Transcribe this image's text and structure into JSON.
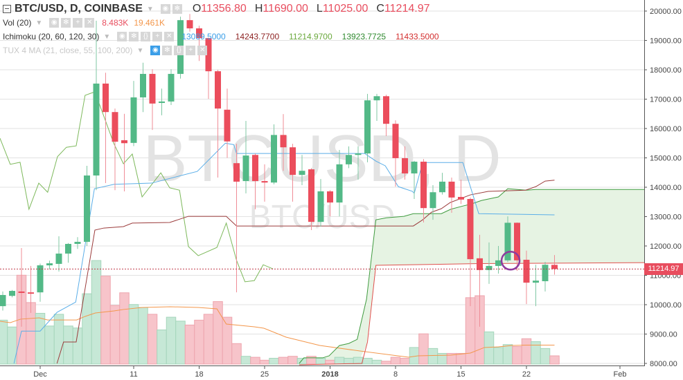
{
  "header": {
    "symbol": "BTC/USD, D, COINBASE",
    "ohlc": {
      "o_label": "O",
      "o": "11356.80",
      "h_label": "H",
      "h": "11690.00",
      "l_label": "L",
      "l": "11025.00",
      "c_label": "C",
      "c": "11214.97"
    }
  },
  "indicators": {
    "vol": {
      "name": "Vol (20)",
      "value": "8.483K",
      "ma": "19.461K"
    },
    "ichimoku": {
      "name": "Ichimoku (20, 60, 120, 30)",
      "conversion": "13089.5000",
      "base": "14243.7700",
      "lagging": "11214.9700",
      "lead_a": "13923.7725",
      "lead_b": "11433.5000"
    },
    "tux": {
      "name": "TUX 4 MA (21, close, 55, 100, 200)"
    }
  },
  "watermark": {
    "big": "BTCUSD, D",
    "small": "BTC/USD"
  },
  "last_price_label": "11214.97",
  "colors": {
    "up": "#53b987",
    "down": "#eb4d5c",
    "vol_up": "#c6e8d6",
    "vol_down": "#f7c4ca",
    "conversion": "#5aaee8",
    "base": "#9b3b3b",
    "lagging": "#7cb85a",
    "lead_a": "#3f9b3f",
    "lead_b": "#e0504d",
    "cloud": "#e6f3e3",
    "vol_ma": "#f3964a",
    "marker": "#8e3b9e"
  },
  "chart_data": {
    "type": "candlestick",
    "title": "BTC/USD, D, COINBASE",
    "ylim": [
      8000,
      20000
    ],
    "y_ticks": [
      "20000.00",
      "19000.00",
      "18000.00",
      "17000.00",
      "16000.00",
      "15000.00",
      "14000.00",
      "13000.00",
      "12000.00",
      "11000.00",
      "10000.00",
      "9000.00",
      "8000.00"
    ],
    "y_tick_values": [
      20000,
      19000,
      18000,
      17000,
      16000,
      15000,
      14000,
      13000,
      12000,
      11000,
      10000,
      9000,
      8000
    ],
    "x_ticks": [
      {
        "label": "Dec",
        "i": 4
      },
      {
        "label": "11",
        "i": 14
      },
      {
        "label": "18",
        "i": 21
      },
      {
        "label": "25",
        "i": 28
      },
      {
        "label": "2018",
        "i": 35,
        "bold": true
      },
      {
        "label": "8",
        "i": 42
      },
      {
        "label": "15",
        "i": 49
      },
      {
        "label": "22",
        "i": 56
      },
      {
        "label": "Feb",
        "i": 66
      }
    ],
    "candles": [
      [
        "Nov 27",
        9950,
        10450,
        9800,
        10330,
        45
      ],
      [
        "Nov 28",
        10300,
        10500,
        10250,
        10470,
        38
      ],
      [
        "Nov 29",
        10450,
        11930,
        9250,
        10400,
        91
      ],
      [
        "Nov 30",
        10420,
        11320,
        9720,
        10380,
        63
      ],
      [
        "Dec 1",
        10420,
        11400,
        10100,
        11340,
        52
      ],
      [
        "Dec 2",
        11340,
        11500,
        11200,
        11410,
        39
      ],
      [
        "Dec 3",
        11390,
        12330,
        11130,
        11740,
        51
      ],
      [
        "Dec 4",
        11740,
        12100,
        11430,
        12070,
        39
      ],
      [
        "Dec 5",
        12070,
        12300,
        11900,
        12140,
        37
      ],
      [
        "Dec 6",
        12140,
        14730,
        12000,
        14400,
        72
      ],
      [
        "Dec 7",
        14400,
        19670,
        13900,
        17530,
        106
      ],
      [
        "Dec 8",
        17530,
        17900,
        14140,
        16560,
        90
      ],
      [
        "Dec 9",
        16560,
        16680,
        13900,
        15550,
        60
      ],
      [
        "Dec 10",
        15600,
        16500,
        13860,
        15500,
        73
      ],
      [
        "Dec 11",
        15510,
        17620,
        15400,
        17060,
        61
      ],
      [
        "Dec 12",
        17060,
        18240,
        16560,
        17860,
        58
      ],
      [
        "Dec 13",
        17860,
        18020,
        15950,
        16850,
        51
      ],
      [
        "Dec 14",
        16870,
        17360,
        16450,
        16920,
        35
      ],
      [
        "Dec 15",
        16920,
        18020,
        16800,
        17860,
        48
      ],
      [
        "Dec 16",
        17860,
        19810,
        17700,
        19690,
        44
      ],
      [
        "Dec 17",
        19690,
        19900,
        19300,
        19410,
        40
      ],
      [
        "Dec 18",
        19410,
        19500,
        18300,
        19080,
        45
      ],
      [
        "Dec 19",
        19080,
        19100,
        17010,
        17950,
        51
      ],
      [
        "Dec 20",
        17950,
        18000,
        14330,
        16680,
        64
      ],
      [
        "Dec 21",
        16640,
        17360,
        15000,
        15560,
        48
      ],
      [
        "Dec 22",
        14820,
        15480,
        10420,
        14190,
        21
      ],
      [
        "Dec 23",
        14210,
        16260,
        13790,
        15080,
        8
      ],
      [
        "Dec 24",
        15100,
        15150,
        13250,
        14210,
        7
      ],
      [
        "Dec 25",
        14210,
        14780,
        13510,
        14160,
        4
      ],
      [
        "Dec 26",
        14160,
        16140,
        14100,
        15780,
        6
      ],
      [
        "Dec 27",
        15780,
        16490,
        14560,
        15360,
        7
      ],
      [
        "Dec 28",
        15360,
        15480,
        13510,
        14420,
        8
      ],
      [
        "Dec 29",
        14420,
        15100,
        14070,
        14560,
        6
      ],
      [
        "Dec 30",
        14610,
        14650,
        12540,
        12820,
        8
      ],
      [
        "Dec 31",
        12820,
        14280,
        12660,
        13860,
        6
      ],
      [
        "Jan 1",
        13860,
        13900,
        13010,
        13480,
        4
      ],
      [
        "Jan 2",
        13480,
        15270,
        13010,
        14780,
        7
      ],
      [
        "Jan 3",
        14780,
        15390,
        14650,
        15100,
        6
      ],
      [
        "Jan 4",
        15100,
        15390,
        14260,
        15150,
        7
      ],
      [
        "Jan 5",
        15150,
        17180,
        14850,
        16960,
        6
      ],
      [
        "Jan 6",
        16960,
        17180,
        16260,
        17100,
        4
      ],
      [
        "Jan 7",
        17100,
        17150,
        15740,
        16160,
        3
      ],
      [
        "Jan 8",
        16160,
        16280,
        14020,
        14990,
        7
      ],
      [
        "Jan 9",
        14990,
        15390,
        14260,
        14470,
        6
      ],
      [
        "Jan 10",
        14470,
        14900,
        13600,
        14870,
        17
      ],
      [
        "Jan 11",
        14870,
        14960,
        12800,
        13290,
        31
      ],
      [
        "Jan 12",
        13290,
        14070,
        12890,
        13830,
        16
      ],
      [
        "Jan 13",
        13830,
        14490,
        13750,
        14190,
        11
      ],
      [
        "Jan 14",
        14190,
        14330,
        13130,
        13650,
        11
      ],
      [
        "Jan 15",
        13670,
        14260,
        13430,
        13580,
        11
      ],
      [
        "Jan 16",
        13600,
        13650,
        9950,
        11550,
        68
      ],
      [
        "Jan 17",
        11580,
        12380,
        9250,
        11180,
        70
      ],
      [
        "Jan 18",
        11180,
        12120,
        10710,
        11320,
        33
      ],
      [
        "Jan 19",
        11320,
        12000,
        11060,
        11510,
        17
      ],
      [
        "Jan 20",
        11510,
        13010,
        11450,
        12790,
        20
      ],
      [
        "Jan 21",
        12790,
        12800,
        11150,
        11510,
        18
      ],
      [
        "Jan 22",
        11530,
        11840,
        10020,
        10750,
        26
      ],
      [
        "Jan 23",
        10750,
        11360,
        9950,
        10820,
        23
      ],
      [
        "Jan 24",
        10800,
        11460,
        10450,
        11360,
        16
      ],
      [
        "Jan 25",
        11356.8,
        11690,
        11025,
        11214.97,
        8.483
      ]
    ],
    "volume_unit": "K",
    "vol_ma": [
      [
        -0.3,
        43.8
      ],
      [
        0.8,
        42.4
      ],
      [
        1.9,
        46
      ],
      [
        3.9,
        47.4
      ],
      [
        4.8,
        45.2
      ],
      [
        7.9,
        45.2
      ],
      [
        8.8,
        48.8
      ],
      [
        9.9,
        52.3
      ],
      [
        11.9,
        54.4
      ],
      [
        12.9,
        55.9
      ],
      [
        14.9,
        58
      ],
      [
        17.9,
        58.7
      ],
      [
        20.9,
        58
      ],
      [
        22.9,
        56.6
      ],
      [
        23.9,
        41
      ],
      [
        26.9,
        38.2
      ],
      [
        27.9,
        36.8
      ],
      [
        30.3,
        27.6
      ],
      [
        33.9,
        19.1
      ],
      [
        38.2,
        13.4
      ],
      [
        43.4,
        7.1
      ],
      [
        44.4,
        8.5
      ],
      [
        47.9,
        9.2
      ],
      [
        48.6,
        9.9
      ],
      [
        50,
        11.3
      ],
      [
        51.5,
        17
      ],
      [
        53,
        17.7
      ],
      [
        54.5,
        19.1
      ],
      [
        56,
        19.4
      ],
      [
        59,
        19.461
      ]
    ],
    "ichimoku": {
      "conversion": [
        [
          1.2,
          8000
        ],
        [
          2,
          9100
        ],
        [
          4,
          9100
        ],
        [
          5.8,
          9740
        ],
        [
          7.8,
          10090
        ],
        [
          9.8,
          13950
        ],
        [
          11.9,
          14100
        ],
        [
          15.9,
          14140
        ],
        [
          20.8,
          14540
        ],
        [
          23.8,
          15500
        ],
        [
          24.7,
          15450
        ],
        [
          25,
          15150
        ],
        [
          38.7,
          15150
        ],
        [
          39.9,
          14890
        ],
        [
          40.9,
          14730
        ],
        [
          42.3,
          14020
        ],
        [
          43.8,
          13860
        ],
        [
          44,
          13790
        ],
        [
          44.9,
          14840
        ],
        [
          49.2,
          14840
        ],
        [
          50.9,
          13100
        ],
        [
          59,
          13060
        ]
      ],
      "base": [
        [
          5.8,
          8000
        ],
        [
          6.5,
          8730
        ],
        [
          7.85,
          8730
        ],
        [
          9.85,
          12540
        ],
        [
          10.8,
          12610
        ],
        [
          12.9,
          12660
        ],
        [
          13.85,
          12780
        ],
        [
          17.85,
          12800
        ],
        [
          19.85,
          13010
        ],
        [
          23.9,
          13010
        ],
        [
          25,
          12680
        ],
        [
          43.9,
          12680
        ],
        [
          44.9,
          12890
        ],
        [
          45.85,
          13150
        ],
        [
          46.9,
          13270
        ],
        [
          47.85,
          13480
        ],
        [
          50,
          13740
        ],
        [
          51.9,
          13860
        ],
        [
          55.9,
          13900
        ],
        [
          57,
          14020
        ],
        [
          58,
          14210
        ],
        [
          59,
          14240
        ]
      ],
      "lagging": [
        [
          -0.3,
          15670
        ],
        [
          0.8,
          14780
        ],
        [
          1.85,
          14850
        ],
        [
          2.8,
          13250
        ],
        [
          3.85,
          14140
        ],
        [
          4.8,
          13830
        ],
        [
          5.85,
          15040
        ],
        [
          6.8,
          15360
        ],
        [
          7.85,
          15410
        ],
        [
          8.8,
          17130
        ],
        [
          9.85,
          17250
        ],
        [
          11.85,
          15510
        ],
        [
          12.9,
          14800
        ],
        [
          13.85,
          15130
        ],
        [
          14.9,
          13670
        ],
        [
          16.9,
          14490
        ],
        [
          17.85,
          13980
        ],
        [
          18.9,
          13900
        ],
        [
          19.85,
          11980
        ],
        [
          20.9,
          11670
        ],
        [
          22.9,
          11950
        ],
        [
          23.9,
          12780
        ],
        [
          25,
          11510
        ],
        [
          25.9,
          10780
        ],
        [
          26.9,
          10820
        ],
        [
          27.85,
          11360
        ],
        [
          28.9,
          11220
        ]
      ],
      "lead_a": [
        [
          31.7,
          8000
        ],
        [
          32.2,
          8190
        ],
        [
          34.2,
          8190
        ],
        [
          34.9,
          8260
        ],
        [
          36,
          8610
        ],
        [
          37,
          8680
        ],
        [
          37.9,
          8820
        ],
        [
          38.9,
          10190
        ],
        [
          39.9,
          12890
        ],
        [
          41,
          12960
        ],
        [
          42.9,
          13010
        ],
        [
          43.9,
          13100
        ],
        [
          46.9,
          13100
        ],
        [
          47.9,
          13250
        ],
        [
          49.2,
          13360
        ],
        [
          50.1,
          13430
        ],
        [
          51.2,
          13550
        ],
        [
          53,
          13670
        ],
        [
          54,
          13950
        ],
        [
          56,
          13900
        ],
        [
          57,
          13924
        ],
        [
          68.6,
          13924
        ]
      ],
      "lead_b": [
        [
          31.7,
          7900
        ],
        [
          38.4,
          8000
        ],
        [
          39,
          8730
        ],
        [
          39.9,
          11340
        ],
        [
          51,
          11400
        ],
        [
          68.6,
          11433
        ]
      ]
    },
    "marker": {
      "i": 54.3,
      "price": 11500
    }
  }
}
